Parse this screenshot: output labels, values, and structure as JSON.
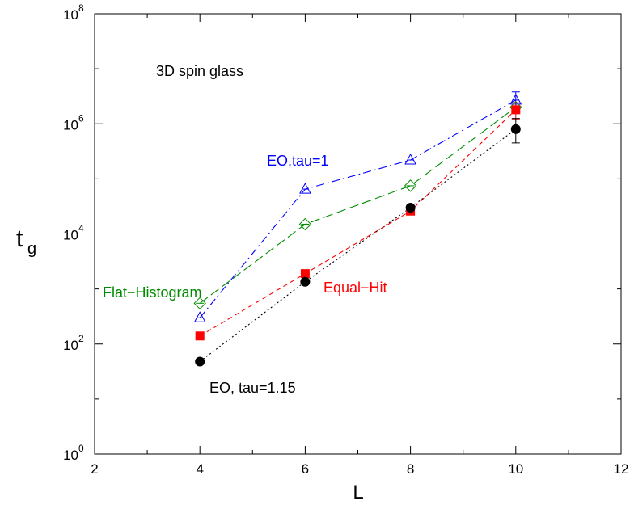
{
  "chart_data": {
    "type": "scatter",
    "title": "",
    "xlabel": "L",
    "ylabel_main": "t",
    "ylabel_sub": "g",
    "xlim": [
      2,
      12
    ],
    "ylim_log10": [
      0,
      8
    ],
    "yscale": "log",
    "grid": false,
    "legend": "none",
    "x_ticks": [
      2,
      4,
      6,
      8,
      10,
      12
    ],
    "x_tick_labels": [
      "2",
      "4",
      "6",
      "8",
      "10",
      "12"
    ],
    "y_ticks_log10": [
      0,
      2,
      4,
      6,
      8
    ],
    "y_tick_base": "10",
    "y_tick_exponents": [
      "0",
      "2",
      "4",
      "6",
      "8"
    ],
    "annotations": {
      "system": {
        "text": "3D spin glass",
        "color": "#000000"
      },
      "eo_tau1": {
        "text": "EO,tau=1",
        "color": "#0000ff"
      },
      "flat": {
        "text": "Flat−Histogram",
        "color": "#008b00"
      },
      "equal": {
        "text": "Equal−Hit",
        "color": "#ff0000"
      },
      "eo_115": {
        "text": "EO, tau=1.15",
        "color": "#000000"
      }
    },
    "series": [
      {
        "key": "eo_tau1",
        "color": "#0000ff",
        "marker": "triangle-open",
        "line": "dashdot",
        "x": [
          4,
          6,
          8,
          10
        ],
        "y": [
          300,
          65000,
          220000,
          2700000
        ],
        "y_err_lo": [
          null,
          null,
          null,
          1900000
        ],
        "y_err_hi": [
          null,
          null,
          null,
          3800000
        ]
      },
      {
        "key": "flat",
        "color": "#008b00",
        "marker": "diamond-open",
        "line": "longdash",
        "x": [
          4,
          6,
          8,
          10
        ],
        "y": [
          550,
          15000,
          75000,
          2000000
        ],
        "y_err_lo": [
          null,
          null,
          null,
          null
        ],
        "y_err_hi": [
          null,
          null,
          null,
          null
        ]
      },
      {
        "key": "equal",
        "color": "#ff0000",
        "marker": "square-filled",
        "line": "dashed",
        "x": [
          4,
          6,
          8,
          10
        ],
        "y": [
          140,
          1900,
          26000,
          1800000
        ],
        "y_err_lo": [
          null,
          null,
          null,
          1200000
        ],
        "y_err_hi": [
          null,
          null,
          null,
          2400000
        ]
      },
      {
        "key": "eo_115",
        "color": "#000000",
        "marker": "circle-filled",
        "line": "dotted",
        "x": [
          4,
          6,
          8,
          10
        ],
        "y": [
          48,
          1350,
          30000,
          800000
        ],
        "y_err_lo": [
          null,
          null,
          null,
          450000
        ],
        "y_err_hi": [
          null,
          null,
          null,
          1250000
        ]
      }
    ]
  }
}
